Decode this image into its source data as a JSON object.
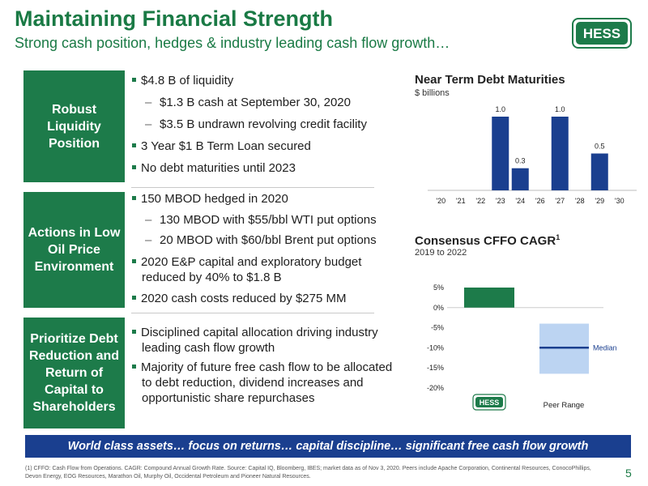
{
  "header": {
    "title": "Maintaining Financial Strength",
    "subtitle": "Strong cash position, hedges & industry leading cash flow growth…",
    "logo_text": "HESS"
  },
  "sections": [
    {
      "label": "Robust Liquidity Position",
      "bullets": [
        {
          "level": 1,
          "text": "$4.8 B of liquidity"
        },
        {
          "level": 2,
          "text": "$1.3 B cash at September 30, 2020"
        },
        {
          "level": 2,
          "text": "$3.5 B undrawn revolving credit facility"
        },
        {
          "level": 1,
          "text": "3 Year $1 B Term Loan secured"
        },
        {
          "level": 1,
          "text": "No debt maturities until 2023"
        }
      ]
    },
    {
      "label": "Actions in Low Oil Price Environment",
      "bullets": [
        {
          "level": 1,
          "text": "150 MBOD hedged in 2020"
        },
        {
          "level": 2,
          "text": "130 MBOD with $55/bbl WTI put options"
        },
        {
          "level": 2,
          "text": "20 MBOD with $60/bbl Brent put options"
        },
        {
          "level": 1,
          "text": "2020 E&P capital and exploratory budget reduced by 40% to $1.8 B"
        },
        {
          "level": 1,
          "text": "2020 cash costs reduced by $275 MM"
        }
      ]
    },
    {
      "label": "Prioritize Debt Reduction and Return of Capital to Shareholders",
      "bullets": [
        {
          "level": 1,
          "text": "Disciplined capital allocation driving industry leading cash flow growth"
        },
        {
          "level": 1,
          "text": "Majority of future free cash flow to be allocated to debt reduction, dividend increases and opportunistic share repurchases"
        }
      ]
    }
  ],
  "chart_data": [
    {
      "type": "bar",
      "title": "Near Term Debt Maturities",
      "subtitle": "$ billions",
      "categories": [
        "'20",
        "'21",
        "'22",
        "'23",
        "'24",
        "'26",
        "'27",
        "'28",
        "'29",
        "'30"
      ],
      "values": [
        0,
        0,
        0,
        1.0,
        0.3,
        0,
        1.0,
        0,
        0.5,
        0
      ],
      "data_labels": [
        "",
        "",
        "",
        "1.0",
        "0.3",
        "",
        "1.0",
        "",
        "0.5",
        ""
      ],
      "ylim": [
        0,
        1.0
      ],
      "grid": false,
      "color": "#1a3f8f"
    },
    {
      "type": "bar",
      "title": "Consensus CFFO CAGR",
      "title_superscript": "1",
      "subtitle": "2019 to 2022",
      "y_ticks": [
        "5%",
        "0%",
        "-5%",
        "-10%",
        "-15%",
        "-20%"
      ],
      "ylim": [
        -20,
        5
      ],
      "hess_value": 5,
      "peer_range": [
        -16.5,
        -4
      ],
      "peer_median": -10,
      "median_label": "Median",
      "peer_label": "Peer Range",
      "hess_label": "HESS",
      "colors": {
        "hess": "#1d7b4a",
        "peer_range": "#bcd4f2",
        "median": "#1a3f8f"
      }
    }
  ],
  "banner": "World class assets… focus on returns… capital discipline… significant free cash flow growth",
  "footnote": "(1) CFFO: Cash Flow from Operations. CAGR: Compound Annual Growth Rate. Source: Capital IQ, Bloomberg, IBES; market data as of Nov 3, 2020. Peers include Apache Corporation, Continental Resources, ConocoPhillips, Devon Energy, EOG Resources, Marathon Oil, Murphy Oil, Occidental Petroleum and Pioneer Natural Resources.",
  "page_number": "5",
  "colors": {
    "brand_green": "#1d7b4a",
    "brand_blue": "#1a3f8f"
  }
}
